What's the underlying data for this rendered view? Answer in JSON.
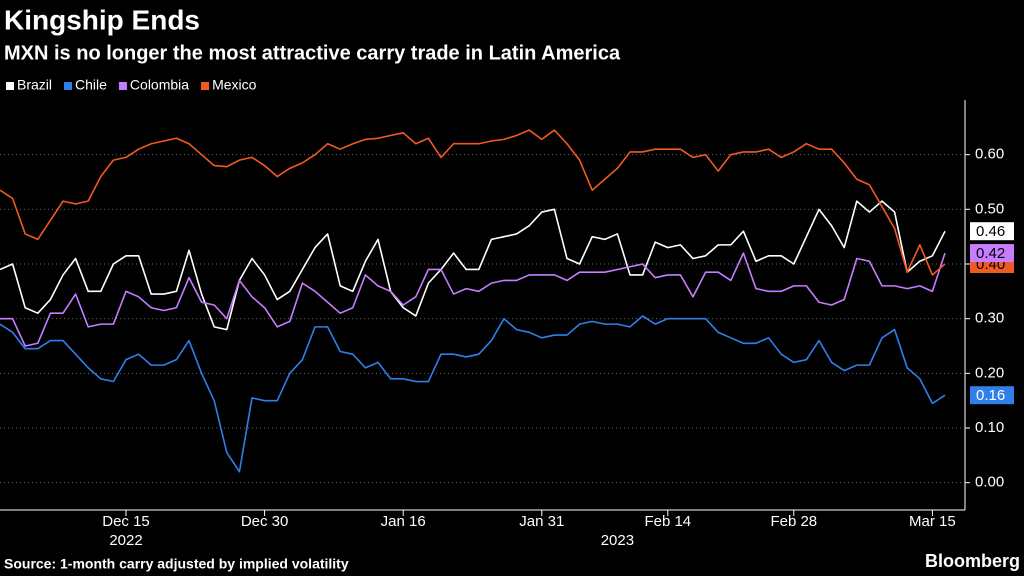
{
  "chart_data": {
    "type": "line",
    "title": "Kingship Ends",
    "subtitle": "MXN is no longer the most attractive carry trade in Latin America",
    "source": "Source: 1-month carry adjusted by implied volatility",
    "brand": "Bloomberg",
    "categories": [
      null,
      null,
      null,
      null,
      null,
      null,
      null,
      null,
      null,
      null,
      "Dec 15",
      null,
      null,
      null,
      null,
      null,
      null,
      null,
      null,
      null,
      null,
      "Dec 30",
      null,
      null,
      null,
      null,
      null,
      null,
      null,
      null,
      null,
      null,
      "Jan 16",
      null,
      null,
      null,
      null,
      null,
      null,
      null,
      null,
      null,
      null,
      "Jan 31",
      null,
      null,
      null,
      null,
      null,
      null,
      null,
      null,
      null,
      "Feb 14",
      null,
      null,
      null,
      null,
      null,
      null,
      null,
      null,
      null,
      "Feb 28",
      null,
      null,
      null,
      null,
      null,
      null,
      null,
      null,
      null,
      null,
      "Mar 15",
      null
    ],
    "x_year_labels": [
      {
        "value": 10,
        "label": "2022"
      },
      {
        "value": 49,
        "label": "2023"
      }
    ],
    "ylim": [
      -0.05,
      0.7
    ],
    "yticks": [
      {
        "value": 0,
        "label": "0.00"
      },
      {
        "value": 0.1,
        "label": "0.10"
      },
      {
        "value": 0.2,
        "label": "0.20"
      },
      {
        "value": 0.3,
        "label": "0.30"
      },
      {
        "value": 0.4,
        "label": "0.40"
      },
      {
        "value": 0.5,
        "label": "0.50"
      },
      {
        "value": 0.6,
        "label": "0.60"
      }
    ],
    "grid": true,
    "legend": "top-left",
    "series": [
      {
        "name": "Brazil",
        "color": "#ffffff",
        "label_text_color": "#000000",
        "values": [
          0.39,
          0.4,
          0.32,
          0.31,
          0.335,
          0.38,
          0.41,
          0.35,
          0.35,
          0.4,
          0.415,
          0.415,
          0.345,
          0.345,
          0.35,
          0.425,
          0.345,
          0.285,
          0.28,
          0.37,
          0.41,
          0.38,
          0.335,
          0.35,
          0.39,
          0.43,
          0.455,
          0.36,
          0.35,
          0.405,
          0.445,
          0.35,
          0.32,
          0.305,
          0.365,
          0.39,
          0.42,
          0.39,
          0.39,
          0.445,
          0.45,
          0.455,
          0.47,
          0.495,
          0.5,
          0.41,
          0.4,
          0.45,
          0.445,
          0.455,
          0.38,
          0.38,
          0.44,
          0.43,
          0.435,
          0.41,
          0.415,
          0.435,
          0.435,
          0.46,
          0.405,
          0.415,
          0.415,
          0.4,
          0.45,
          0.5,
          0.47,
          0.43,
          0.515,
          0.495,
          0.515,
          0.495,
          0.385,
          0.405,
          0.415,
          0.46
        ],
        "value_labels": [
          null,
          null,
          null,
          null,
          null,
          null,
          null,
          null,
          null,
          null,
          null,
          null,
          null,
          null,
          null,
          null,
          null,
          null,
          null,
          null,
          null,
          null,
          null,
          null,
          null,
          null,
          null,
          null,
          null,
          null,
          null,
          null,
          null,
          null,
          null,
          null,
          null,
          null,
          null,
          null,
          null,
          null,
          null,
          null,
          null,
          null,
          null,
          null,
          null,
          null,
          null,
          null,
          null,
          null,
          null,
          null,
          null,
          null,
          null,
          null,
          null,
          null,
          null,
          null,
          null,
          null,
          null,
          null,
          null,
          null,
          null,
          null,
          null,
          null,
          null,
          "0.46"
        ]
      },
      {
        "name": "Chile",
        "color": "#2f80ea",
        "label_text_color": "#ffffff",
        "values": [
          0.29,
          0.275,
          0.245,
          0.245,
          0.26,
          0.26,
          0.235,
          0.21,
          0.19,
          0.185,
          0.225,
          0.235,
          0.215,
          0.215,
          0.225,
          0.26,
          0.2,
          0.15,
          0.055,
          0.02,
          0.155,
          0.15,
          0.15,
          0.2,
          0.225,
          0.285,
          0.285,
          0.24,
          0.235,
          0.21,
          0.22,
          0.19,
          0.19,
          0.185,
          0.185,
          0.235,
          0.235,
          0.23,
          0.235,
          0.26,
          0.3,
          0.28,
          0.275,
          0.265,
          0.27,
          0.27,
          0.29,
          0.295,
          0.29,
          0.29,
          0.285,
          0.305,
          0.29,
          0.3,
          0.3,
          0.3,
          0.3,
          0.275,
          0.265,
          0.255,
          0.255,
          0.265,
          0.235,
          0.22,
          0.225,
          0.26,
          0.22,
          0.205,
          0.215,
          0.215,
          0.265,
          0.28,
          0.21,
          0.19,
          0.145,
          0.16
        ],
        "value_labels": [
          null,
          null,
          null,
          null,
          null,
          null,
          null,
          null,
          null,
          null,
          null,
          null,
          null,
          null,
          null,
          null,
          null,
          null,
          null,
          null,
          null,
          null,
          null,
          null,
          null,
          null,
          null,
          null,
          null,
          null,
          null,
          null,
          null,
          null,
          null,
          null,
          null,
          null,
          null,
          null,
          null,
          null,
          null,
          null,
          null,
          null,
          null,
          null,
          null,
          null,
          null,
          null,
          null,
          null,
          null,
          null,
          null,
          null,
          null,
          null,
          null,
          null,
          null,
          null,
          null,
          null,
          null,
          null,
          null,
          null,
          null,
          null,
          null,
          null,
          null,
          "0.16"
        ]
      },
      {
        "name": "Colombia",
        "color": "#c77dff",
        "label_text_color": "#000000",
        "values": [
          0.3,
          0.3,
          0.25,
          0.255,
          0.31,
          0.31,
          0.345,
          0.285,
          0.29,
          0.29,
          0.35,
          0.34,
          0.32,
          0.315,
          0.32,
          0.375,
          0.33,
          0.325,
          0.3,
          0.37,
          0.34,
          0.32,
          0.285,
          0.295,
          0.365,
          0.35,
          0.33,
          0.31,
          0.32,
          0.38,
          0.36,
          0.35,
          0.325,
          0.34,
          0.39,
          0.39,
          0.345,
          0.355,
          0.35,
          0.365,
          0.37,
          0.37,
          0.38,
          0.38,
          0.38,
          0.37,
          0.385,
          0.385,
          0.385,
          0.39,
          0.395,
          0.4,
          0.375,
          0.38,
          0.38,
          0.34,
          0.385,
          0.385,
          0.37,
          0.42,
          0.355,
          0.35,
          0.35,
          0.36,
          0.36,
          0.33,
          0.325,
          0.335,
          0.41,
          0.405,
          0.36,
          0.36,
          0.355,
          0.36,
          0.35,
          0.42
        ],
        "value_labels": [
          null,
          null,
          null,
          null,
          null,
          null,
          null,
          null,
          null,
          null,
          null,
          null,
          null,
          null,
          null,
          null,
          null,
          null,
          null,
          null,
          null,
          null,
          null,
          null,
          null,
          null,
          null,
          null,
          null,
          null,
          null,
          null,
          null,
          null,
          null,
          null,
          null,
          null,
          null,
          null,
          null,
          null,
          null,
          null,
          null,
          null,
          null,
          null,
          null,
          null,
          null,
          null,
          null,
          null,
          null,
          null,
          null,
          null,
          null,
          null,
          null,
          null,
          null,
          null,
          null,
          null,
          null,
          null,
          null,
          null,
          null,
          null,
          null,
          null,
          null,
          "0.42"
        ]
      },
      {
        "name": "Mexico",
        "color": "#f15a22",
        "label_text_color": "#000000",
        "values": [
          0.535,
          0.52,
          0.455,
          0.445,
          0.48,
          0.515,
          0.51,
          0.515,
          0.56,
          0.59,
          0.595,
          0.61,
          0.62,
          0.625,
          0.63,
          0.62,
          0.6,
          0.58,
          0.578,
          0.59,
          0.595,
          0.58,
          0.56,
          0.575,
          0.585,
          0.6,
          0.62,
          0.61,
          0.62,
          0.628,
          0.63,
          0.635,
          0.64,
          0.62,
          0.63,
          0.595,
          0.62,
          0.62,
          0.62,
          0.625,
          0.628,
          0.635,
          0.645,
          0.628,
          0.645,
          0.62,
          0.59,
          0.535,
          0.555,
          0.575,
          0.605,
          0.605,
          0.61,
          0.61,
          0.61,
          0.595,
          0.6,
          0.57,
          0.6,
          0.605,
          0.605,
          0.61,
          0.595,
          0.605,
          0.62,
          0.61,
          0.61,
          0.585,
          0.555,
          0.545,
          0.505,
          0.465,
          0.385,
          0.435,
          0.38,
          0.4
        ],
        "value_labels": [
          null,
          null,
          null,
          null,
          null,
          null,
          null,
          null,
          null,
          null,
          null,
          null,
          null,
          null,
          null,
          null,
          null,
          null,
          null,
          null,
          null,
          null,
          null,
          null,
          null,
          null,
          null,
          null,
          null,
          null,
          null,
          null,
          null,
          null,
          null,
          null,
          null,
          null,
          null,
          null,
          null,
          null,
          null,
          null,
          null,
          null,
          null,
          null,
          null,
          null,
          null,
          null,
          null,
          null,
          null,
          null,
          null,
          null,
          null,
          null,
          null,
          null,
          null,
          null,
          null,
          null,
          null,
          null,
          null,
          null,
          null,
          null,
          null,
          null,
          null,
          "0.40"
        ]
      }
    ]
  }
}
